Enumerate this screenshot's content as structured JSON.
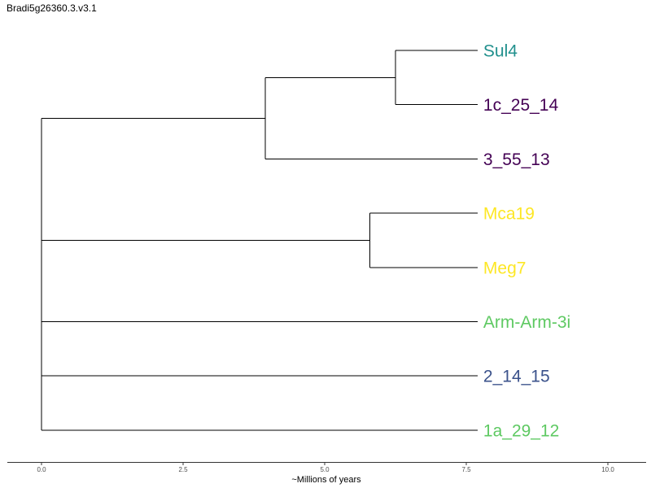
{
  "chart_data": {
    "type": "dendrogram",
    "title": "Bradi5g26360.3.v3.1",
    "xlabel": "~Millions of years",
    "xlim": [
      0,
      10
    ],
    "x_ticks": [
      0,
      2.5,
      5,
      7.5,
      10
    ],
    "x_tick_labels": [
      "0.0",
      "2.5",
      "5.0",
      "7.5",
      "10.0"
    ],
    "grid": false,
    "tree_depth": 7.7,
    "leaves": [
      {
        "name": "Sul4",
        "color": "#21908d"
      },
      {
        "name": "1c_25_14",
        "color": "#440154"
      },
      {
        "name": "3_55_13",
        "color": "#440154"
      },
      {
        "name": "Mca19",
        "color": "#fde725"
      },
      {
        "name": "Meg7",
        "color": "#fde725"
      },
      {
        "name": "Arm-Arm-3i",
        "color": "#5ec962"
      },
      {
        "name": "2_14_15",
        "color": "#3b528b"
      },
      {
        "name": "1a_29_12",
        "color": "#5ec962"
      }
    ],
    "internal_nodes": [
      {
        "id": "n1",
        "height": 0,
        "children": [
          "n2",
          "n5",
          "L5",
          "L6",
          "L7"
        ]
      },
      {
        "id": "n2",
        "height": 3.95,
        "children": [
          "n3",
          "L2"
        ]
      },
      {
        "id": "n3",
        "height": 6.25,
        "children": [
          "L0",
          "L1"
        ]
      },
      {
        "id": "n5",
        "height": 5.8,
        "children": [
          "L3",
          "L4"
        ]
      }
    ]
  }
}
